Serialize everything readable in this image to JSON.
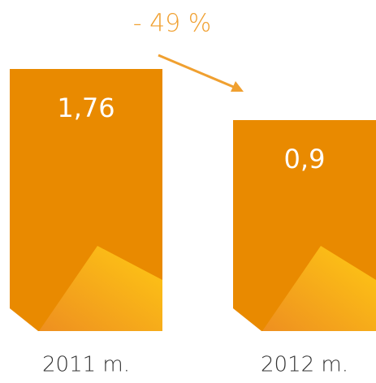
{
  "chart_data": {
    "type": "bar",
    "annotation": "- 49 %",
    "categories": [
      "2011 m.",
      "2012 m."
    ],
    "values": [
      1.76,
      0.9
    ],
    "value_labels": [
      "1,76",
      "0,9"
    ],
    "color": "#e98a00"
  }
}
